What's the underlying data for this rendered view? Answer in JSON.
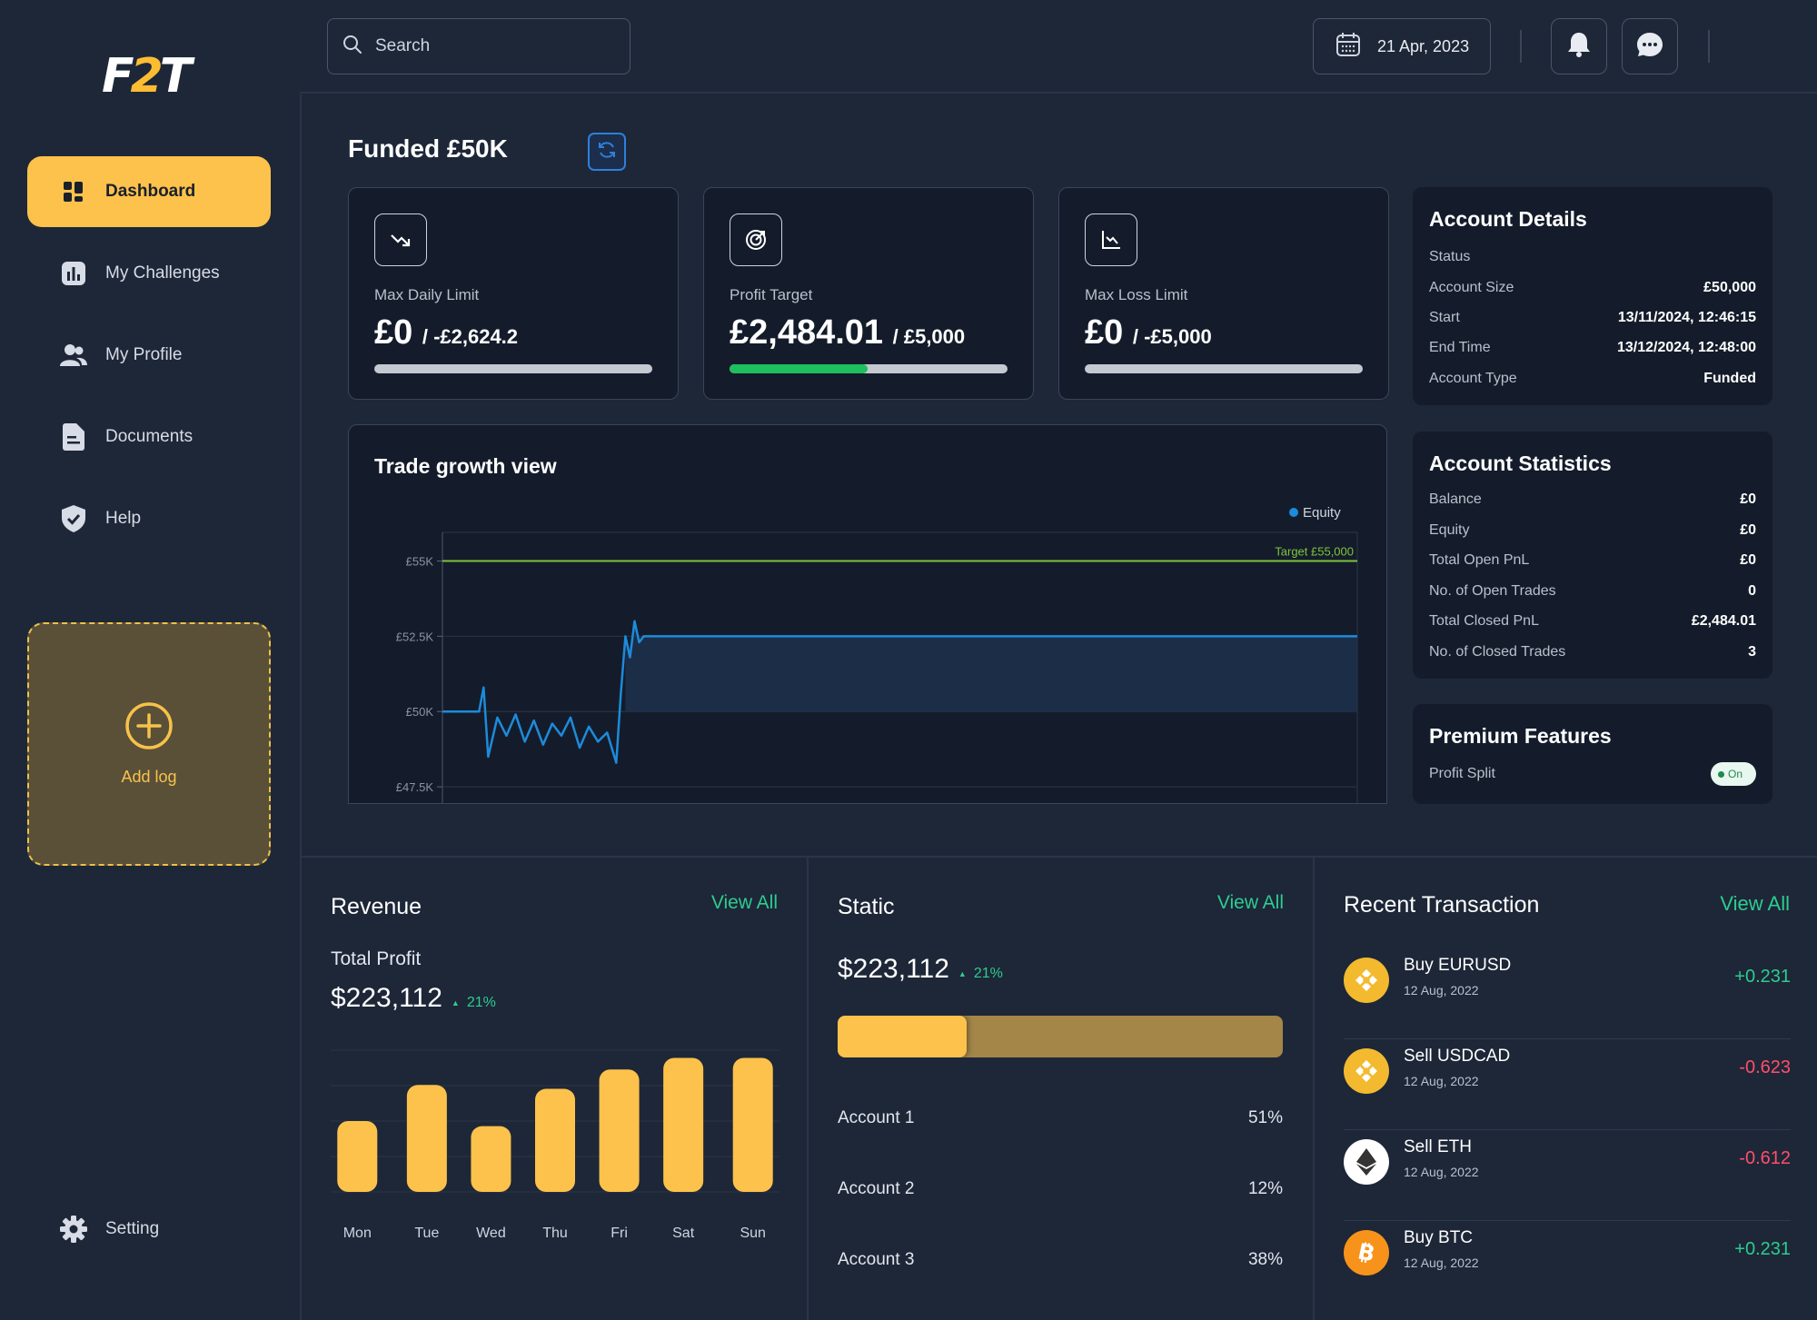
{
  "app": {
    "logo": {
      "f": "F",
      "two": "2",
      "t": "T"
    }
  },
  "colors": {
    "accent": "#fdc24b",
    "positive": "#2ecc8f",
    "negative": "#ff4f6a",
    "chart_line": "#1d8bdb",
    "target_line": "#7dc43c"
  },
  "sidebar": {
    "items": [
      {
        "label": "Dashboard",
        "icon": "dashboard-grid-icon",
        "active": true
      },
      {
        "label": "My Challenges",
        "icon": "bar-chart-icon",
        "active": false
      },
      {
        "label": "My Profile",
        "icon": "users-icon",
        "active": false
      },
      {
        "label": "Documents",
        "icon": "document-icon",
        "active": false
      },
      {
        "label": "Help",
        "icon": "shield-check-icon",
        "active": false
      }
    ],
    "add_log": {
      "label": "Add log",
      "icon": "plus-circle-icon"
    },
    "setting": {
      "label": "Setting",
      "icon": "gear-icon"
    }
  },
  "topbar": {
    "search_placeholder": "Search",
    "date": "21 Apr, 2023",
    "icons": [
      "calendar-icon",
      "bell-icon",
      "chat-icon"
    ]
  },
  "page": {
    "title": "Funded £50K"
  },
  "stat_cards": [
    {
      "label": "Max Daily Limit",
      "value": "£0",
      "sub": "/ -£2,624.2",
      "icon": "trend-down-icon",
      "progress": 0
    },
    {
      "label": "Profit Target",
      "value": "£2,484.01",
      "sub": "/ £5,000",
      "icon": "target-icon",
      "progress": 0.497
    },
    {
      "label": "Max Loss Limit",
      "value": "£0",
      "sub": "/ -£5,000",
      "icon": "chart-down-icon",
      "progress": 0
    }
  ],
  "account_details": {
    "title": "Account Details",
    "rows": [
      {
        "k": "Status",
        "v": ""
      },
      {
        "k": "Account Size",
        "v": "£50,000"
      },
      {
        "k": "Start",
        "v": "13/11/2024, 12:46:15"
      },
      {
        "k": "End Time",
        "v": "13/12/2024, 12:48:00"
      },
      {
        "k": "Account Type",
        "v": "Funded"
      }
    ]
  },
  "account_statistics": {
    "title": "Account Statistics",
    "rows": [
      {
        "k": "Balance",
        "v": "£0"
      },
      {
        "k": "Equity",
        "v": "£0"
      },
      {
        "k": "Total Open PnL",
        "v": "£0"
      },
      {
        "k": "No. of Open Trades",
        "v": "0"
      },
      {
        "k": "Total Closed PnL",
        "v": "£2,484.01"
      },
      {
        "k": "No. of Closed Trades",
        "v": "3"
      }
    ]
  },
  "premium": {
    "title": "Premium Features",
    "profit_split_label": "Profit Split",
    "toggle_label": "On"
  },
  "chart_data": {
    "type": "line",
    "title": "Trade growth view",
    "legend": [
      "Equity"
    ],
    "legend_placement": "top-right",
    "y_ticks": [
      "£55K",
      "£52.5K",
      "£50K",
      "£47.5K"
    ],
    "y_tick_values": [
      55000,
      52500,
      50000,
      47500
    ],
    "ylim": [
      46900,
      55950
    ],
    "target": {
      "label": "Target £55,000",
      "value": 55000
    },
    "series": [
      {
        "name": "Equity",
        "x": [
          0,
          2,
          4,
          4.5,
          5,
          6,
          7,
          8,
          9,
          10,
          11,
          12,
          13,
          14,
          15,
          16,
          17,
          18,
          19,
          19.5,
          20,
          20.5,
          21,
          21.5,
          22,
          100
        ],
        "values": [
          50000,
          50000,
          50000,
          50800,
          48500,
          49800,
          49200,
          49900,
          49000,
          49700,
          48900,
          49600,
          49200,
          49800,
          48800,
          49500,
          49000,
          49300,
          48300,
          50600,
          52500,
          51800,
          53000,
          52300,
          52500,
          52500
        ]
      }
    ]
  },
  "revenue": {
    "title": "Revenue",
    "view_all": "View All",
    "subtitle": "Total Profit",
    "value": "$223,112",
    "delta": "21%",
    "bars": {
      "categories": [
        "Mon",
        "Tue",
        "Wed",
        "Thu",
        "Fri",
        "Sat",
        "Sun"
      ],
      "values": [
        55,
        83,
        51,
        80,
        95,
        104,
        104
      ]
    }
  },
  "static": {
    "title": "Static",
    "view_all": "View All",
    "value": "$223,112",
    "delta": "21%",
    "progress": 0.29,
    "accounts": [
      {
        "label": "Account 1",
        "value": "51%"
      },
      {
        "label": "Account 2",
        "value": "12%"
      },
      {
        "label": "Account 3",
        "value": "38%"
      }
    ]
  },
  "transactions": {
    "title": "Recent Transaction",
    "view_all": "View All",
    "items": [
      {
        "name": "Buy EURUSD",
        "date": "12 Aug, 2022",
        "amount": "+0.231",
        "positive": true,
        "icon": "binance-coin-icon"
      },
      {
        "name": "Sell USDCAD",
        "date": "12 Aug, 2022",
        "amount": "-0.623",
        "positive": false,
        "icon": "binance-coin-icon"
      },
      {
        "name": "Sell ETH",
        "date": "12 Aug, 2022",
        "amount": "-0.612",
        "positive": false,
        "icon": "ethereum-icon"
      },
      {
        "name": "Buy BTC",
        "date": "12 Aug, 2022",
        "amount": "+0.231",
        "positive": true,
        "icon": "bitcoin-icon"
      }
    ]
  }
}
